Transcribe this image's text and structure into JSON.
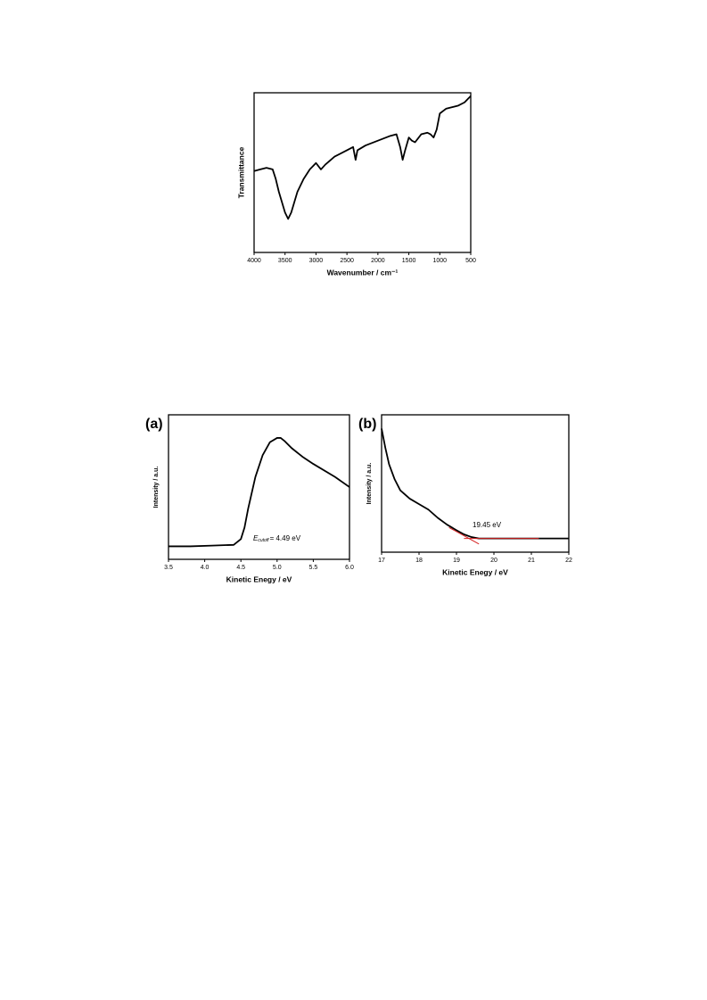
{
  "chart_data": [
    {
      "type": "line",
      "xlabel": "Wavenumber / cm⁻¹",
      "ylabel": "Transmittance",
      "xlim": [
        4000,
        500
      ],
      "xticks": [
        4000,
        3500,
        3000,
        2500,
        2000,
        1500,
        1000,
        500
      ],
      "ylim": [
        0,
        100
      ],
      "series": [
        {
          "color": "#000000",
          "x": [
            4000,
            3900,
            3800,
            3700,
            3650,
            3600,
            3500,
            3450,
            3400,
            3300,
            3200,
            3100,
            3000,
            2920,
            2850,
            2700,
            2500,
            2400,
            2360,
            2330,
            2200,
            2000,
            1800,
            1700,
            1640,
            1600,
            1560,
            1500,
            1450,
            1400,
            1300,
            1200,
            1150,
            1100,
            1050,
            1000,
            900,
            800,
            700,
            600,
            500
          ],
          "values": [
            51,
            52,
            53,
            52,
            46,
            38,
            25,
            21,
            25,
            38,
            46,
            52,
            56,
            52,
            55,
            60,
            64,
            66,
            58,
            64,
            67,
            70,
            73,
            74,
            66,
            58,
            64,
            72,
            70,
            69,
            74,
            75,
            74,
            72,
            77,
            87,
            90,
            91,
            92,
            94,
            98
          ]
        }
      ]
    },
    {
      "type": "line",
      "panel_label": "(a)",
      "xlabel": "Kinetic Enegy / eV",
      "ylabel": "Intensity / a.u.",
      "annotation": {
        "symbol": "E",
        "subscript": "cutoff",
        "text": "= 4.49 eV"
      },
      "xlim": [
        3.5,
        6.0
      ],
      "xticks": [
        3.5,
        {
          "value": 4,
          "label": "4.0"
        },
        4.5,
        {
          "value": 5,
          "label": "5.0"
        },
        5.5,
        {
          "value": 6,
          "label": "6.0"
        }
      ],
      "ylim": [
        0,
        100
      ],
      "series": [
        {
          "color": "#000000",
          "x": [
            3.5,
            3.8,
            4.1,
            4.4,
            4.5,
            4.55,
            4.6,
            4.7,
            4.8,
            4.9,
            5.0,
            5.05,
            5.1,
            5.2,
            5.35,
            5.5,
            5.8,
            6.0
          ],
          "values": [
            9,
            9,
            9.5,
            10,
            14,
            22,
            35,
            57,
            72,
            81,
            84,
            84,
            82,
            77,
            71,
            66,
            57,
            50
          ]
        }
      ]
    },
    {
      "type": "line",
      "panel_label": "(b)",
      "xlabel": "Kinetic Enegy / eV",
      "ylabel": "Intensity / a.u.",
      "annotation": {
        "text": "19.45 eV"
      },
      "xlim": [
        17,
        22
      ],
      "xticks": [
        17,
        18,
        19,
        20,
        21,
        22
      ],
      "ylim": [
        0,
        100
      ],
      "series": [
        {
          "color": "#000000",
          "x": [
            17,
            17.1,
            17.2,
            17.35,
            17.5,
            17.75,
            18,
            18.25,
            18.5,
            18.75,
            19,
            19.2,
            19.4,
            19.6,
            20,
            20.5,
            21,
            21.5,
            22
          ],
          "values": [
            90,
            76,
            64,
            53,
            45,
            39,
            35,
            31,
            25,
            20,
            16,
            13,
            11,
            10,
            10,
            10,
            10,
            10,
            10
          ]
        },
        {
          "color": "#d62020",
          "x": [
            18.8,
            19.6
          ],
          "values": [
            18,
            6
          ]
        },
        {
          "color": "#d62020",
          "x": [
            19.2,
            21.2
          ],
          "values": [
            10,
            10
          ]
        }
      ]
    }
  ]
}
